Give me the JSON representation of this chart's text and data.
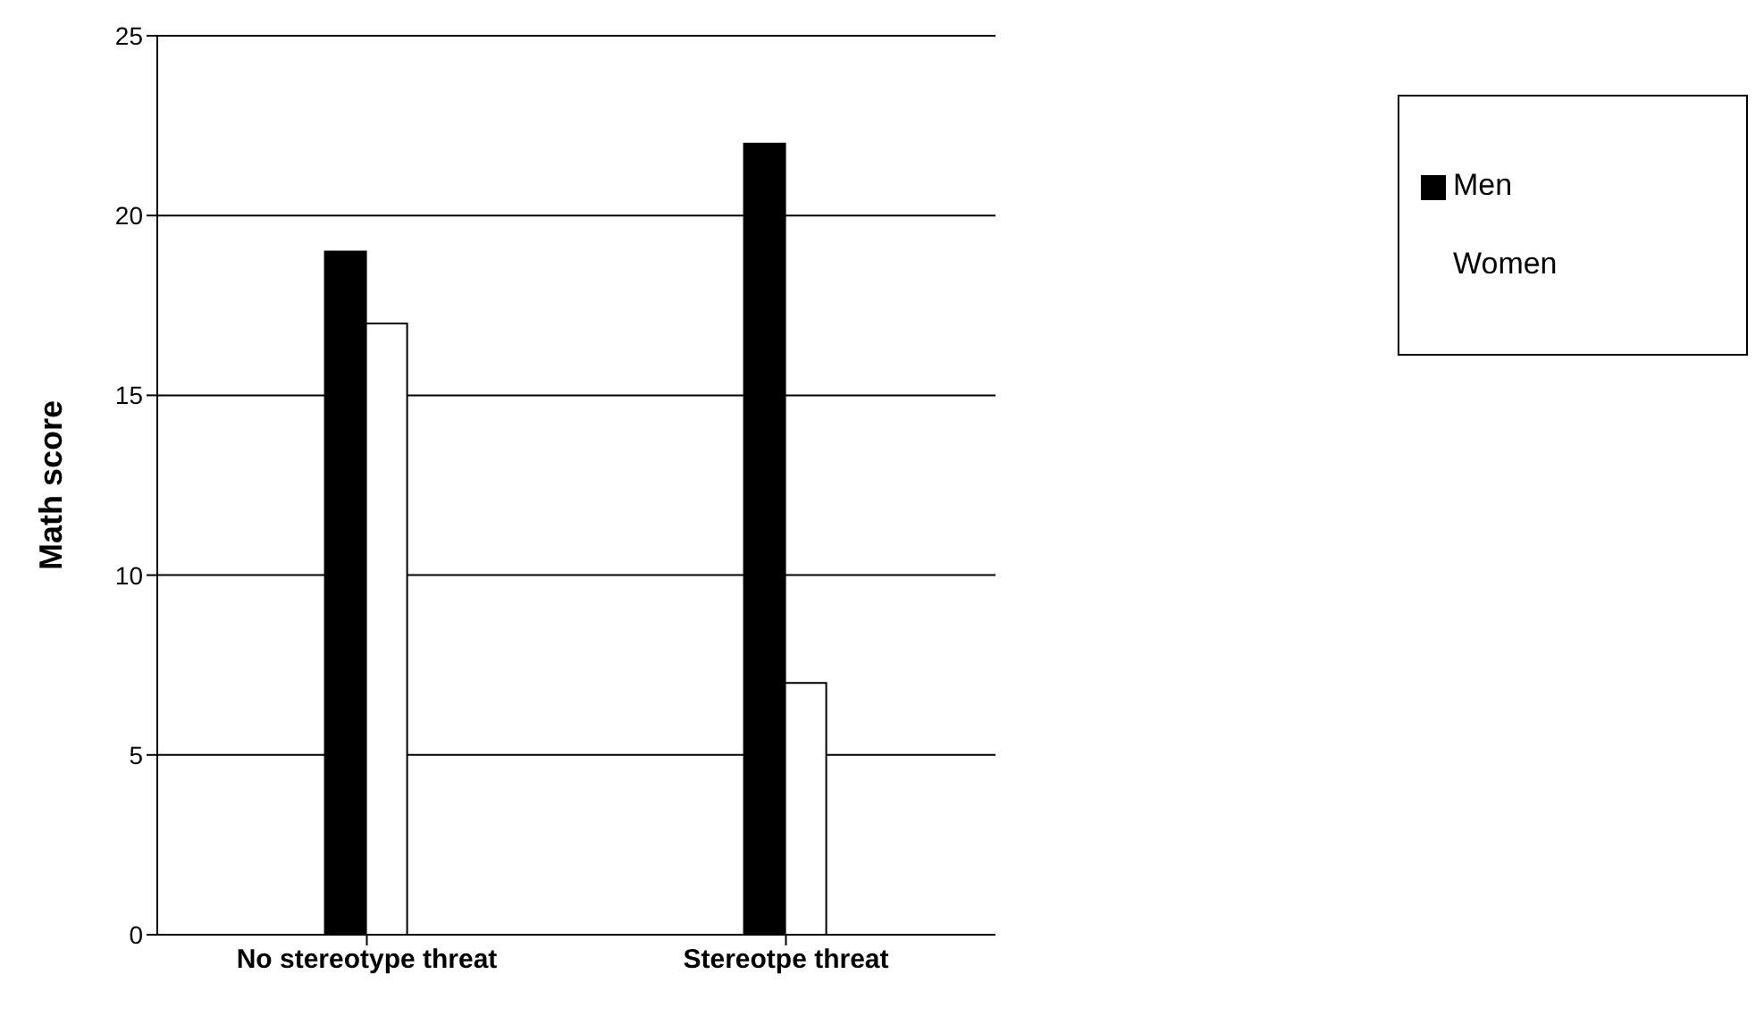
{
  "chart_data": {
    "type": "bar",
    "ylabel": "Math score",
    "categories": [
      "No stereotype threat",
      "Stereotpe threat"
    ],
    "series": [
      {
        "name": "Men",
        "color": "#000000",
        "values": [
          19,
          22
        ]
      },
      {
        "name": "Women",
        "color": "#ffffff",
        "values": [
          17,
          7
        ]
      }
    ],
    "ylim": [
      0,
      25
    ],
    "yticks": [
      0,
      5,
      10,
      15,
      20,
      25
    ],
    "grid": "y",
    "legend": "top right"
  }
}
